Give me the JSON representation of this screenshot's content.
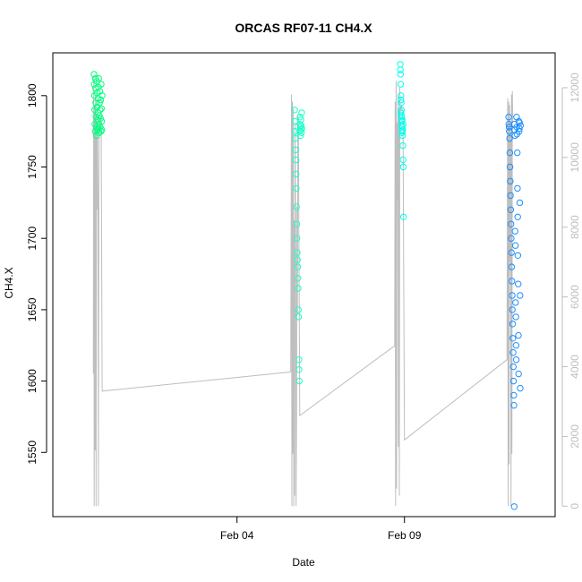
{
  "chart_data": {
    "type": "scatter",
    "title": "ORCAS RF07-11 CH4.X",
    "xlabel": "Date",
    "ylabel": "CH4.X",
    "x_ticks": [
      {
        "label": "Feb 04",
        "value": "2016-02-04"
      },
      {
        "label": "Feb 09",
        "value": "2016-02-09"
      }
    ],
    "xlim": [
      "2016-01-29T12:00",
      "2016-02-13T12:00"
    ],
    "ylim": [
      1505,
      1830
    ],
    "y_ticks": [
      1550,
      1600,
      1650,
      1700,
      1750,
      1800
    ],
    "y2_ticks": [
      0,
      2000,
      4000,
      6000,
      8000,
      10000,
      12000
    ],
    "y2lim": [
      -300,
      13000
    ],
    "grid": false,
    "colors": {
      "flight_1": "#00ff7f",
      "flight_2": "#1affc8",
      "flight_3": "#00ffee",
      "flight_4": "#1e90ff",
      "altitude_line": "#bebebe",
      "right_axis": "#bebebe"
    },
    "series": [
      {
        "color": "#00ff7f",
        "points": [
          {
            "x": "2016-01-30T17:30",
            "y": 1815
          },
          {
            "x": "2016-01-30T17:40",
            "y": 1808
          },
          {
            "x": "2016-01-30T17:50",
            "y": 1800
          },
          {
            "x": "2016-01-30T18:00",
            "y": 1790
          },
          {
            "x": "2016-01-30T18:10",
            "y": 1780
          },
          {
            "x": "2016-01-30T18:20",
            "y": 1775
          },
          {
            "x": "2016-01-30T18:30",
            "y": 1812
          },
          {
            "x": "2016-01-30T18:40",
            "y": 1805
          },
          {
            "x": "2016-01-30T18:50",
            "y": 1795
          },
          {
            "x": "2016-01-30T19:00",
            "y": 1785
          },
          {
            "x": "2016-01-30T19:10",
            "y": 1778
          },
          {
            "x": "2016-01-30T19:20",
            "y": 1772
          },
          {
            "x": "2016-01-30T19:30",
            "y": 1810
          },
          {
            "x": "2016-01-30T19:40",
            "y": 1802
          },
          {
            "x": "2016-01-30T19:50",
            "y": 1792
          },
          {
            "x": "2016-01-30T20:00",
            "y": 1783
          },
          {
            "x": "2016-01-30T20:10",
            "y": 1776
          },
          {
            "x": "2016-01-30T20:20",
            "y": 1788
          },
          {
            "x": "2016-01-30T20:30",
            "y": 1798
          },
          {
            "x": "2016-01-30T20:40",
            "y": 1806
          },
          {
            "x": "2016-01-30T20:50",
            "y": 1812
          },
          {
            "x": "2016-01-30T21:00",
            "y": 1780
          },
          {
            "x": "2016-01-30T21:10",
            "y": 1774
          },
          {
            "x": "2016-01-30T21:20",
            "y": 1786
          },
          {
            "x": "2016-01-30T21:30",
            "y": 1795
          },
          {
            "x": "2016-01-30T21:40",
            "y": 1803
          },
          {
            "x": "2016-01-30T21:50",
            "y": 1790
          },
          {
            "x": "2016-01-30T22:00",
            "y": 1778
          },
          {
            "x": "2016-01-30T22:10",
            "y": 1784
          },
          {
            "x": "2016-01-30T22:20",
            "y": 1797
          },
          {
            "x": "2016-01-30T22:30",
            "y": 1775
          },
          {
            "x": "2016-01-30T22:40",
            "y": 1808
          },
          {
            "x": "2016-01-30T22:50",
            "y": 1791
          },
          {
            "x": "2016-01-30T23:00",
            "y": 1782
          },
          {
            "x": "2016-01-30T23:10",
            "y": 1776
          },
          {
            "x": "2016-01-30T23:20",
            "y": 1800
          }
        ]
      },
      {
        "color": "#1affc8",
        "points": [
          {
            "x": "2016-02-05T17:20",
            "y": 1790
          },
          {
            "x": "2016-02-05T17:30",
            "y": 1782
          },
          {
            "x": "2016-02-05T17:40",
            "y": 1775
          },
          {
            "x": "2016-02-05T17:50",
            "y": 1770
          },
          {
            "x": "2016-02-05T18:00",
            "y": 1762
          },
          {
            "x": "2016-02-05T18:10",
            "y": 1755
          },
          {
            "x": "2016-02-05T18:20",
            "y": 1745
          },
          {
            "x": "2016-02-05T18:30",
            "y": 1735
          },
          {
            "x": "2016-02-05T18:40",
            "y": 1722
          },
          {
            "x": "2016-02-05T18:50",
            "y": 1710
          },
          {
            "x": "2016-02-05T19:00",
            "y": 1700
          },
          {
            "x": "2016-02-05T19:10",
            "y": 1690
          },
          {
            "x": "2016-02-05T19:20",
            "y": 1685
          },
          {
            "x": "2016-02-05T19:30",
            "y": 1680
          },
          {
            "x": "2016-02-05T19:40",
            "y": 1672
          },
          {
            "x": "2016-02-05T19:50",
            "y": 1665
          },
          {
            "x": "2016-02-05T20:00",
            "y": 1650
          },
          {
            "x": "2016-02-05T20:10",
            "y": 1645
          },
          {
            "x": "2016-02-05T20:20",
            "y": 1615
          },
          {
            "x": "2016-02-05T20:30",
            "y": 1608
          },
          {
            "x": "2016-02-05T20:40",
            "y": 1600
          },
          {
            "x": "2016-02-05T20:50",
            "y": 1775
          },
          {
            "x": "2016-02-05T21:00",
            "y": 1780
          },
          {
            "x": "2016-02-05T21:10",
            "y": 1785
          },
          {
            "x": "2016-02-05T21:20",
            "y": 1778
          },
          {
            "x": "2016-02-05T21:30",
            "y": 1772
          },
          {
            "x": "2016-02-05T21:40",
            "y": 1776
          },
          {
            "x": "2016-02-05T21:50",
            "y": 1783
          },
          {
            "x": "2016-02-05T22:00",
            "y": 1779
          },
          {
            "x": "2016-02-05T22:10",
            "y": 1774
          },
          {
            "x": "2016-02-05T22:20",
            "y": 1788
          },
          {
            "x": "2016-02-05T22:30",
            "y": 1777
          }
        ]
      },
      {
        "color": "#00ffee",
        "points": [
          {
            "x": "2016-02-08T21:00",
            "y": 1822
          },
          {
            "x": "2016-02-08T21:10",
            "y": 1815
          },
          {
            "x": "2016-02-08T21:20",
            "y": 1808
          },
          {
            "x": "2016-02-08T21:30",
            "y": 1800
          },
          {
            "x": "2016-02-08T21:40",
            "y": 1795
          },
          {
            "x": "2016-02-08T21:50",
            "y": 1790
          },
          {
            "x": "2016-02-08T22:00",
            "y": 1785
          },
          {
            "x": "2016-02-08T22:10",
            "y": 1782
          },
          {
            "x": "2016-02-08T22:20",
            "y": 1778
          },
          {
            "x": "2016-02-08T22:30",
            "y": 1775
          },
          {
            "x": "2016-02-08T22:40",
            "y": 1772
          },
          {
            "x": "2016-02-08T22:50",
            "y": 1765
          },
          {
            "x": "2016-02-08T23:00",
            "y": 1755
          },
          {
            "x": "2016-02-08T23:10",
            "y": 1750
          },
          {
            "x": "2016-02-08T23:20",
            "y": 1715
          },
          {
            "x": "2016-02-08T21:05",
            "y": 1818
          },
          {
            "x": "2016-02-08T21:25",
            "y": 1797
          },
          {
            "x": "2016-02-08T21:45",
            "y": 1786
          },
          {
            "x": "2016-02-08T22:05",
            "y": 1779
          },
          {
            "x": "2016-02-08T22:25",
            "y": 1783
          },
          {
            "x": "2016-02-08T22:45",
            "y": 1776
          },
          {
            "x": "2016-02-08T23:05",
            "y": 1780
          },
          {
            "x": "2016-02-08T21:35",
            "y": 1788
          },
          {
            "x": "2016-02-08T22:15",
            "y": 1774
          }
        ]
      },
      {
        "color": "#1e90ff",
        "points": [
          {
            "x": "2016-02-12T02:40",
            "y": 1785
          },
          {
            "x": "2016-02-12T02:50",
            "y": 1780
          },
          {
            "x": "2016-02-12T03:00",
            "y": 1778
          },
          {
            "x": "2016-02-12T03:10",
            "y": 1775
          },
          {
            "x": "2016-02-12T03:20",
            "y": 1770
          },
          {
            "x": "2016-02-12T03:30",
            "y": 1760
          },
          {
            "x": "2016-02-12T03:40",
            "y": 1750
          },
          {
            "x": "2016-02-12T03:50",
            "y": 1740
          },
          {
            "x": "2016-02-12T04:00",
            "y": 1730
          },
          {
            "x": "2016-02-12T04:10",
            "y": 1720
          },
          {
            "x": "2016-02-12T04:20",
            "y": 1710
          },
          {
            "x": "2016-02-12T04:30",
            "y": 1700
          },
          {
            "x": "2016-02-12T04:40",
            "y": 1690
          },
          {
            "x": "2016-02-12T04:50",
            "y": 1680
          },
          {
            "x": "2016-02-12T05:00",
            "y": 1670
          },
          {
            "x": "2016-02-12T05:10",
            "y": 1660
          },
          {
            "x": "2016-02-12T05:20",
            "y": 1650
          },
          {
            "x": "2016-02-12T05:30",
            "y": 1640
          },
          {
            "x": "2016-02-12T05:40",
            "y": 1630
          },
          {
            "x": "2016-02-12T05:50",
            "y": 1620
          },
          {
            "x": "2016-02-12T06:00",
            "y": 1610
          },
          {
            "x": "2016-02-12T06:10",
            "y": 1600
          },
          {
            "x": "2016-02-12T06:20",
            "y": 1590
          },
          {
            "x": "2016-02-12T06:30",
            "y": 1583
          },
          {
            "x": "2016-02-12T06:40",
            "y": 1512
          },
          {
            "x": "2016-02-12T06:50",
            "y": 1780
          },
          {
            "x": "2016-02-12T07:00",
            "y": 1776
          },
          {
            "x": "2016-02-12T07:10",
            "y": 1772
          },
          {
            "x": "2016-02-12T07:20",
            "y": 1705
          },
          {
            "x": "2016-02-12T07:30",
            "y": 1695
          },
          {
            "x": "2016-02-12T07:40",
            "y": 1655
          },
          {
            "x": "2016-02-12T07:50",
            "y": 1645
          },
          {
            "x": "2016-02-12T08:00",
            "y": 1625
          },
          {
            "x": "2016-02-12T08:10",
            "y": 1615
          },
          {
            "x": "2016-02-12T08:20",
            "y": 1785
          },
          {
            "x": "2016-02-12T08:30",
            "y": 1778
          },
          {
            "x": "2016-02-12T08:40",
            "y": 1773
          },
          {
            "x": "2016-02-12T08:50",
            "y": 1760
          },
          {
            "x": "2016-02-12T09:00",
            "y": 1735
          },
          {
            "x": "2016-02-12T09:10",
            "y": 1715
          },
          {
            "x": "2016-02-12T09:20",
            "y": 1688
          },
          {
            "x": "2016-02-12T09:30",
            "y": 1668
          },
          {
            "x": "2016-02-12T09:40",
            "y": 1632
          },
          {
            "x": "2016-02-12T09:50",
            "y": 1605
          },
          {
            "x": "2016-02-12T10:00",
            "y": 1782
          },
          {
            "x": "2016-02-12T10:10",
            "y": 1775
          },
          {
            "x": "2016-02-12T10:20",
            "y": 1777
          },
          {
            "x": "2016-02-12T10:30",
            "y": 1781
          },
          {
            "x": "2016-02-12T10:40",
            "y": 1725
          },
          {
            "x": "2016-02-12T10:50",
            "y": 1660
          },
          {
            "x": "2016-02-12T11:00",
            "y": 1595
          },
          {
            "x": "2016-02-12T11:10",
            "y": 1779
          }
        ]
      }
    ],
    "altitude_line": [
      {
        "x": "2016-01-30T17:00",
        "y2": 3800
      },
      {
        "x": "2016-01-30T17:20",
        "y2": 12300
      },
      {
        "x": "2016-01-30T17:40",
        "y2": 0
      },
      {
        "x": "2016-01-30T18:00",
        "y2": 11500
      },
      {
        "x": "2016-01-30T18:20",
        "y2": 1600
      },
      {
        "x": "2016-01-30T18:40",
        "y2": 11800
      },
      {
        "x": "2016-01-30T19:00",
        "y2": 0
      },
      {
        "x": "2016-01-30T19:20",
        "y2": 11200
      },
      {
        "x": "2016-01-30T19:40",
        "y2": 8500
      },
      {
        "x": "2016-01-30T20:00",
        "y2": 11000
      },
      {
        "x": "2016-01-30T20:20",
        "y2": 8600
      },
      {
        "x": "2016-01-30T20:40",
        "y2": 0
      },
      {
        "x": "2016-01-30T21:00",
        "y2": 8600
      },
      {
        "x": "2016-01-30T21:20",
        "y2": 11000
      },
      {
        "x": "2016-01-30T22:00",
        "y2": 10800
      },
      {
        "x": "2016-01-30T22:40",
        "y2": 11200
      },
      {
        "x": "2016-01-30T23:20",
        "y2": 3300
      },
      {
        "x": "2016-02-05T14:30",
        "y2": 3850
      },
      {
        "x": "2016-02-05T15:00",
        "y2": 11800
      },
      {
        "x": "2016-02-05T15:20",
        "y2": 0
      },
      {
        "x": "2016-02-05T15:40",
        "y2": 11600
      },
      {
        "x": "2016-02-05T16:00",
        "y2": 1500
      },
      {
        "x": "2016-02-05T16:20",
        "y2": 11400
      },
      {
        "x": "2016-02-05T16:40",
        "y2": 0
      },
      {
        "x": "2016-02-05T17:00",
        "y2": 8200
      },
      {
        "x": "2016-02-05T17:20",
        "y2": 300
      },
      {
        "x": "2016-02-05T17:40",
        "y2": 11000
      },
      {
        "x": "2016-02-05T18:00",
        "y2": 8600
      },
      {
        "x": "2016-02-05T18:20",
        "y2": 0
      },
      {
        "x": "2016-02-05T18:40",
        "y2": 2500
      },
      {
        "x": "2016-02-05T19:00",
        "y2": 8600
      },
      {
        "x": "2016-02-05T19:20",
        "y2": 5500
      },
      {
        "x": "2016-02-05T19:40",
        "y2": 11200
      },
      {
        "x": "2016-02-05T20:00",
        "y2": 10800
      },
      {
        "x": "2016-02-05T21:00",
        "y2": 2600
      },
      {
        "x": "2016-02-08T17:00",
        "y2": 4600
      },
      {
        "x": "2016-02-08T17:20",
        "y2": 11600
      },
      {
        "x": "2016-02-08T17:40",
        "y2": 0
      },
      {
        "x": "2016-02-08T18:00",
        "y2": 12200
      },
      {
        "x": "2016-02-08T18:20",
        "y2": 500
      },
      {
        "x": "2016-02-08T18:40",
        "y2": 11000
      },
      {
        "x": "2016-02-08T19:00",
        "y2": 8800
      },
      {
        "x": "2016-02-08T19:20",
        "y2": 11800
      },
      {
        "x": "2016-02-08T19:40",
        "y2": 1700
      },
      {
        "x": "2016-02-08T20:00",
        "y2": 11400
      },
      {
        "x": "2016-02-08T20:20",
        "y2": 300
      },
      {
        "x": "2016-02-08T20:40",
        "y2": 12000
      },
      {
        "x": "2016-02-08T21:00",
        "y2": 11300
      },
      {
        "x": "2016-02-08T22:00",
        "y2": 11500
      },
      {
        "x": "2016-02-08T23:00",
        "y2": 11000
      },
      {
        "x": "2016-02-09T00:00",
        "y2": 1900
      },
      {
        "x": "2016-02-12T01:30",
        "y2": 4200
      },
      {
        "x": "2016-02-12T02:00",
        "y2": 11700
      },
      {
        "x": "2016-02-12T02:20",
        "y2": 0
      },
      {
        "x": "2016-02-12T02:40",
        "y2": 11600
      },
      {
        "x": "2016-02-12T03:00",
        "y2": 1200
      },
      {
        "x": "2016-02-12T03:20",
        "y2": 11500
      },
      {
        "x": "2016-02-12T03:40",
        "y2": 7000
      },
      {
        "x": "2016-02-12T04:00",
        "y2": 11000
      },
      {
        "x": "2016-02-12T04:20",
        "y2": 0
      },
      {
        "x": "2016-02-12T04:40",
        "y2": 11800
      },
      {
        "x": "2016-02-12T05:00",
        "y2": 1500
      },
      {
        "x": "2016-02-12T05:20",
        "y2": 11900
      },
      {
        "x": "2016-02-12T05:40",
        "y2": 11000
      }
    ]
  }
}
